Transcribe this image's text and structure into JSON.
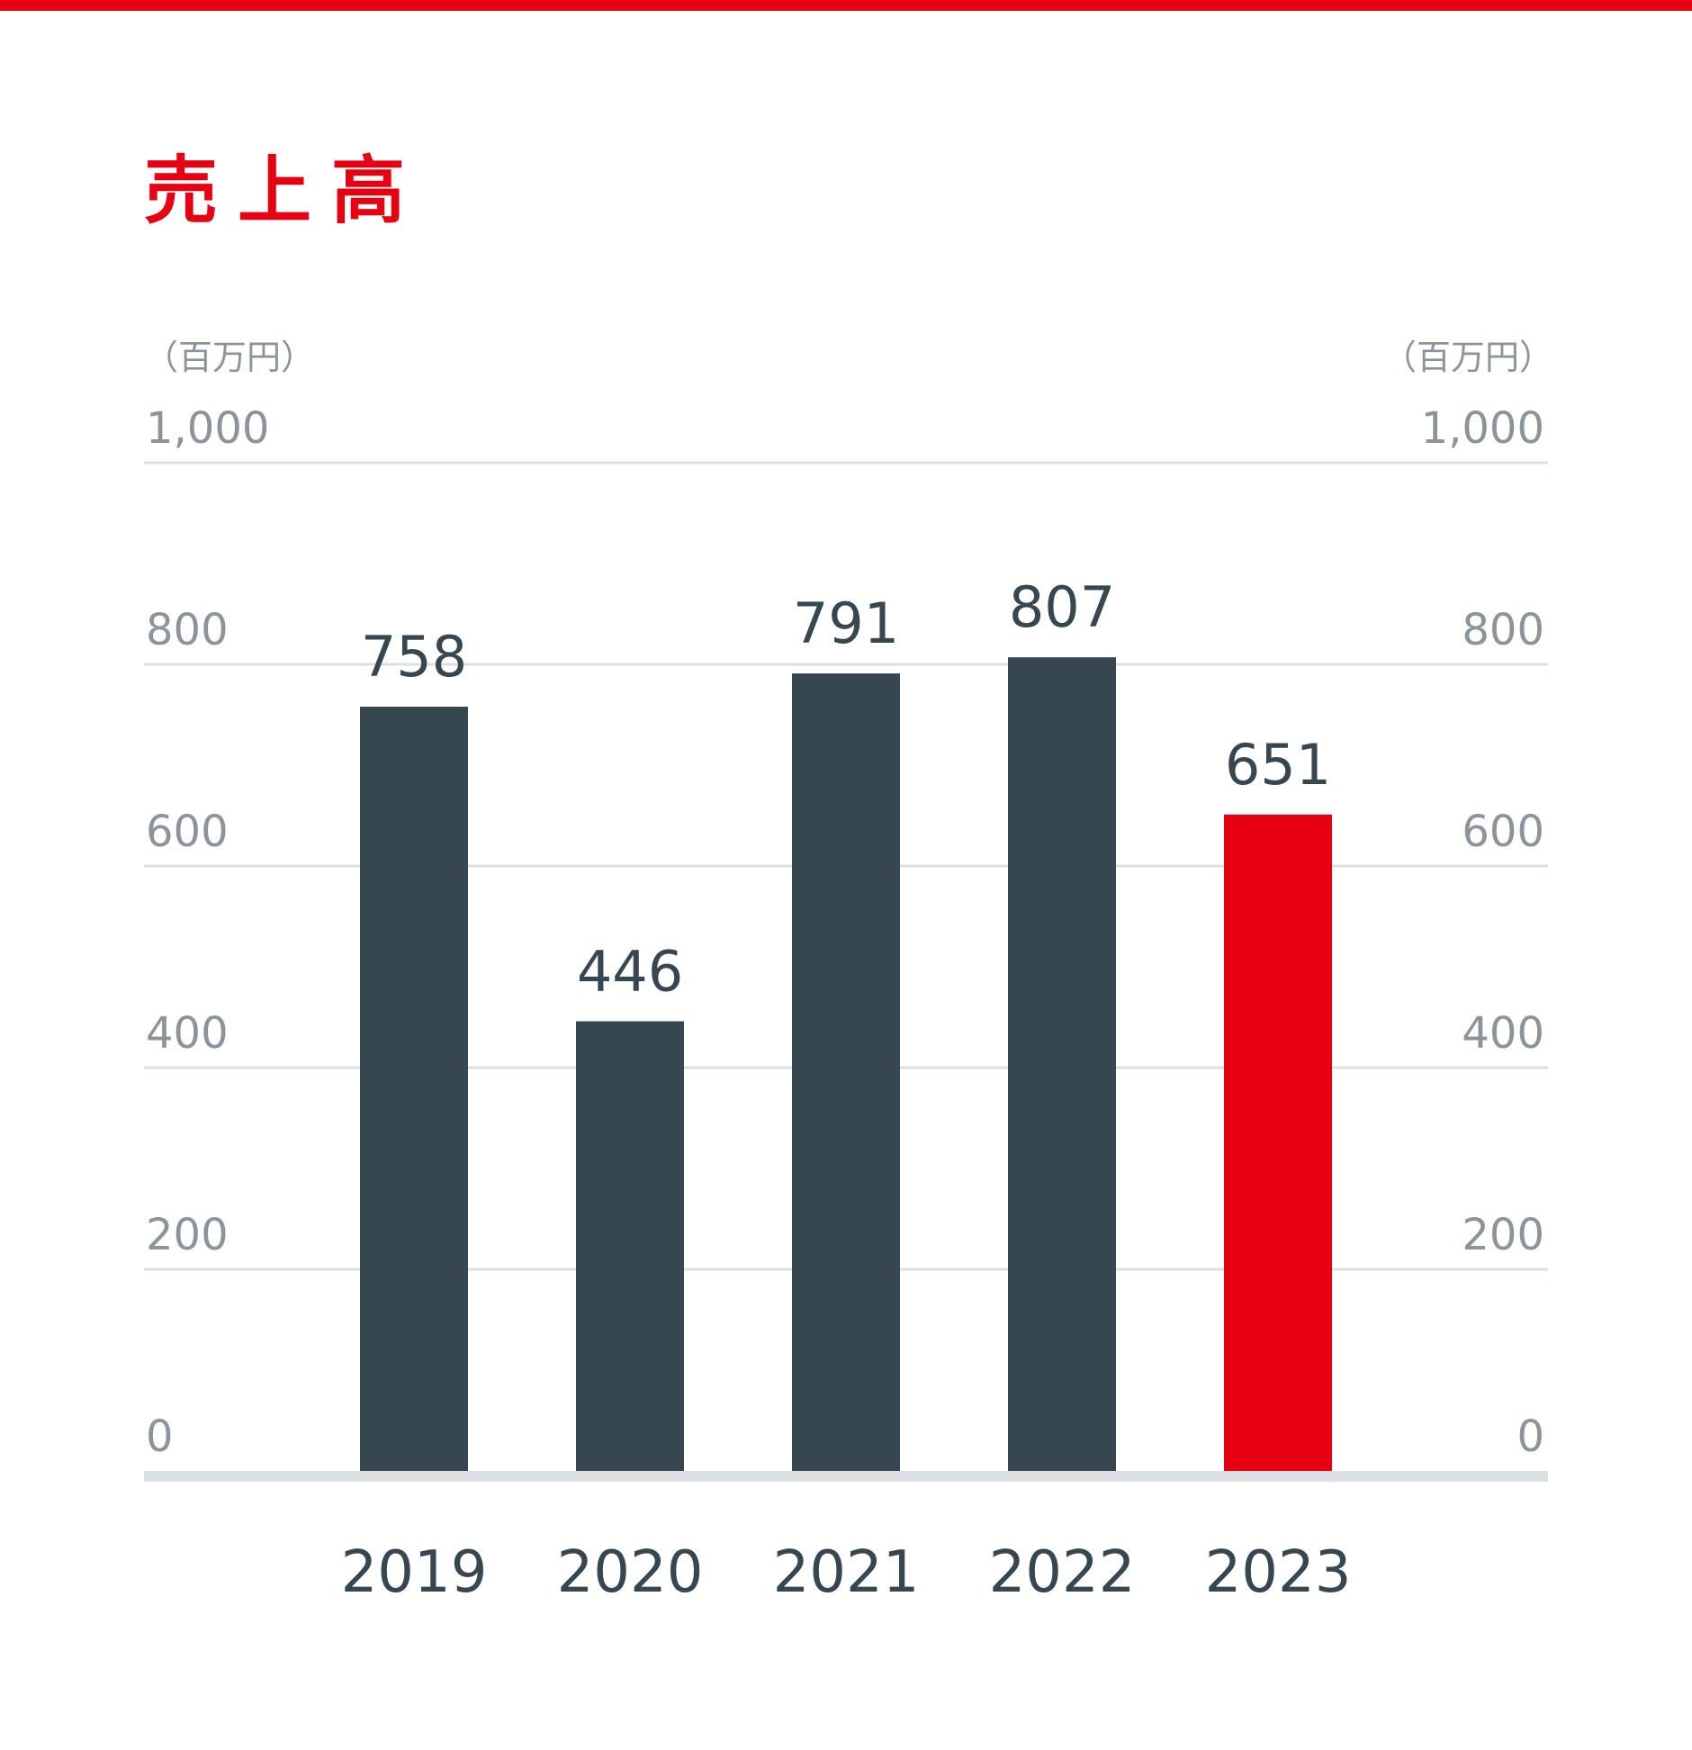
{
  "chart_data": {
    "type": "bar",
    "title": "売上高",
    "unit_label": "（百万円）",
    "categories": [
      "2019",
      "2020",
      "2021",
      "2022",
      "2023"
    ],
    "values": [
      758,
      446,
      791,
      807,
      651
    ],
    "value_labels": [
      "758",
      "446",
      "791",
      "807",
      "651"
    ],
    "highlight_index": 4,
    "ylim": [
      0,
      1000
    ],
    "y_ticks": [
      "1,000",
      "800",
      "600",
      "400",
      "200",
      "0"
    ],
    "y_tick_values": [
      1000,
      800,
      600,
      400,
      200,
      0
    ],
    "y_axis_sides": [
      "left",
      "right"
    ],
    "grid": true,
    "legend": "none",
    "colors": {
      "bar": "#37474f",
      "highlight": "#e60012",
      "grid": "#dcdfe1",
      "baseline": "#dcdfe1",
      "tick_text": "#8c949a",
      "accent_bar": "#e60012"
    }
  }
}
